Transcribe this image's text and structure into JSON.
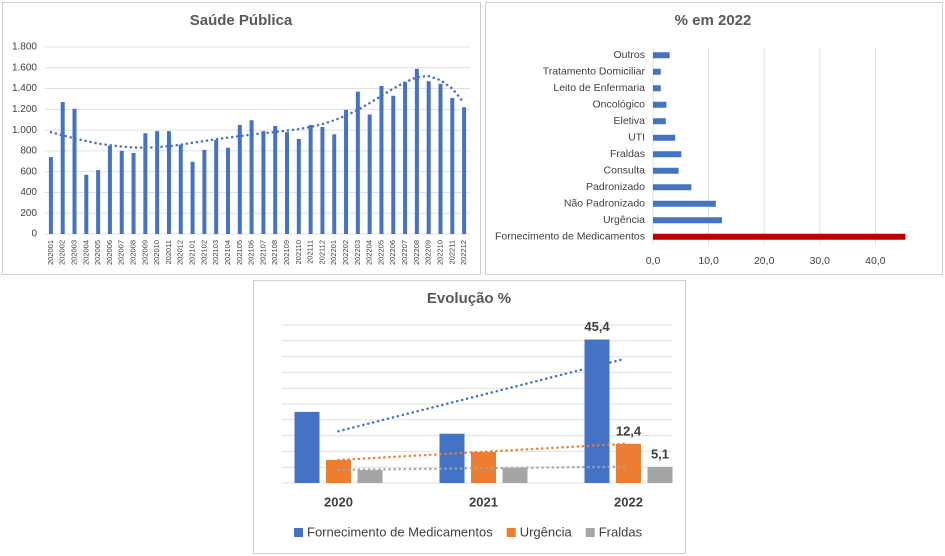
{
  "chart_data": [
    {
      "type": "bar",
      "title": "Saúde Pública",
      "categories": [
        "202001",
        "202002",
        "202003",
        "202004",
        "202005",
        "202006",
        "202007",
        "202008",
        "202009",
        "202010",
        "202011",
        "202012",
        "202101",
        "202102",
        "202103",
        "202104",
        "202105",
        "202106",
        "202107",
        "202108",
        "202109",
        "202110",
        "202111",
        "202112",
        "202201",
        "202202",
        "202203",
        "202204",
        "202205",
        "202206",
        "202207",
        "202208",
        "202209",
        "202210",
        "202211",
        "202212"
      ],
      "values": [
        740,
        1270,
        1205,
        570,
        615,
        850,
        800,
        780,
        970,
        990,
        990,
        860,
        695,
        810,
        905,
        830,
        1050,
        1095,
        990,
        1040,
        980,
        915,
        1050,
        1030,
        960,
        1195,
        1370,
        1150,
        1425,
        1330,
        1460,
        1590,
        1470,
        1445,
        1310,
        1220
      ],
      "trendline": [
        980,
        950,
        920,
        895,
        870,
        855,
        842,
        833,
        830,
        835,
        845,
        860,
        878,
        895,
        912,
        928,
        943,
        957,
        970,
        982,
        995,
        1010,
        1030,
        1058,
        1095,
        1140,
        1195,
        1260,
        1330,
        1400,
        1460,
        1510,
        1520,
        1480,
        1400,
        1260
      ],
      "color": "#4472c4",
      "ylim": [
        0,
        1800
      ],
      "yticks": [
        0,
        200,
        400,
        600,
        800,
        {
          "value": 1000,
          "label": "1.000"
        },
        {
          "value": 1200,
          "label": "1.200"
        },
        {
          "value": 1400,
          "label": "1.400"
        },
        {
          "value": 1600,
          "label": "1.600"
        },
        {
          "value": 1800,
          "label": "1.800"
        }
      ],
      "grid": true
    },
    {
      "type": "hbar",
      "title": "% em 2022",
      "categories": [
        "Fornecimento de Medicamentos",
        "Urgência",
        "Não Padronizado",
        "Padronizado",
        "Consulta",
        "Fraldas",
        "UTI",
        "Eletiva",
        "Oncológico",
        "Leito de Enfermaria",
        "Tratamento Domiciliar",
        "Outros"
      ],
      "values": [
        45.4,
        12.4,
        11.3,
        6.9,
        4.6,
        5.1,
        4.0,
        2.3,
        2.4,
        1.4,
        1.4,
        3.0
      ],
      "colors": [
        "#c00000",
        "#4472c4",
        "#4472c4",
        "#4472c4",
        "#4472c4",
        "#4472c4",
        "#4472c4",
        "#4472c4",
        "#4472c4",
        "#4472c4",
        "#4472c4",
        "#4472c4"
      ],
      "xlim": [
        0,
        50
      ],
      "xticks": [
        {
          "value": 0,
          "label": "0,0"
        },
        {
          "value": 10,
          "label": "10,0"
        },
        {
          "value": 20,
          "label": "20,0"
        },
        {
          "value": 30,
          "label": "30,0"
        },
        {
          "value": 40,
          "label": "40,0"
        }
      ],
      "grid": true
    },
    {
      "type": "grouped_bar",
      "title": "Evolução %",
      "categories": [
        "2020",
        "2021",
        "2022"
      ],
      "series": [
        {
          "name": "Fornecimento de Medicamentos",
          "color": "#4472c4",
          "values": [
            22.5,
            15.6,
            45.4
          ],
          "value_labels": [
            null,
            null,
            "45,4"
          ]
        },
        {
          "name": "Urgência",
          "color": "#ed7d31",
          "values": [
            7.3,
            9.8,
            12.4
          ],
          "value_labels": [
            null,
            null,
            "12,4"
          ]
        },
        {
          "name": "Fraldas",
          "color": "#a5a5a5",
          "values": [
            4.1,
            4.8,
            5.1
          ],
          "value_labels": [
            null,
            null,
            "5,1"
          ]
        }
      ],
      "ylim": [
        0,
        50
      ],
      "yticks": [
        0,
        5,
        10,
        15,
        20,
        25,
        30,
        35,
        40,
        45,
        50
      ],
      "tick_labels": false,
      "trendline": "linear",
      "grid": true,
      "legend": "bottom"
    }
  ]
}
